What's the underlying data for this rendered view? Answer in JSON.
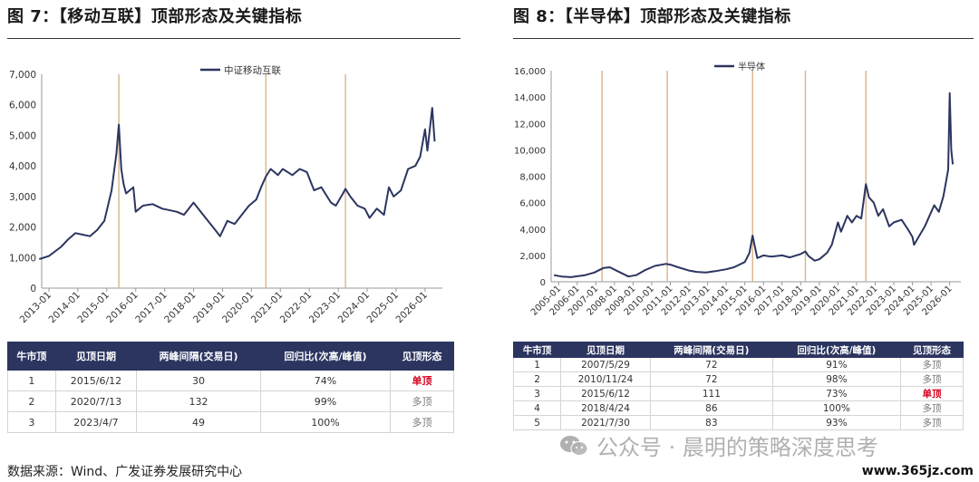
{
  "figures": [
    {
      "title": "图 7：【移动互联】顶部形态及关键指标",
      "chart_data": {
        "type": "line",
        "series": [
          {
            "name": "中证移动互联",
            "color": "#2c3560"
          }
        ],
        "x": [
          "2012-09",
          "2013-01",
          "2013-06",
          "2013-09",
          "2013-12",
          "2014-03",
          "2014-06",
          "2014-09",
          "2014-12",
          "2015-03",
          "2015-05",
          "2015-06",
          "2015-07",
          "2015-08",
          "2015-09",
          "2015-12",
          "2016-01",
          "2016-04",
          "2016-08",
          "2016-12",
          "2017-06",
          "2017-09",
          "2018-01",
          "2018-06",
          "2018-10",
          "2018-12",
          "2019-03",
          "2019-06",
          "2019-09",
          "2019-12",
          "2020-03",
          "2020-05",
          "2020-07",
          "2020-09",
          "2020-12",
          "2021-02",
          "2021-06",
          "2021-09",
          "2021-12",
          "2022-03",
          "2022-06",
          "2022-10",
          "2022-12",
          "2023-03",
          "2023-04",
          "2023-06",
          "2023-09",
          "2023-12",
          "2024-02",
          "2024-05",
          "2024-08",
          "2024-10",
          "2024-12",
          "2025-03",
          "2025-06",
          "2025-09",
          "2025-11",
          "2026-01",
          "2026-02",
          "2026-04",
          "2026-05"
        ],
        "values": [
          950,
          1050,
          1350,
          1600,
          1800,
          1750,
          1700,
          1900,
          2200,
          3200,
          4400,
          5350,
          3900,
          3400,
          3100,
          3300,
          2500,
          2700,
          2750,
          2600,
          2500,
          2400,
          2800,
          2300,
          1900,
          1700,
          2200,
          2100,
          2400,
          2700,
          2900,
          3300,
          3650,
          3900,
          3700,
          3900,
          3700,
          3900,
          3800,
          3200,
          3300,
          2800,
          2700,
          3100,
          3250,
          3000,
          2700,
          2600,
          2300,
          2600,
          2400,
          3300,
          3000,
          3200,
          3900,
          4000,
          4300,
          5200,
          4500,
          5900,
          4800
        ],
        "ylim": [
          0,
          7000
        ],
        "yticks": [
          "0",
          "1,000",
          "2,000",
          "3,000",
          "4,000",
          "5,000",
          "6,000",
          "7,000"
        ],
        "xticks": [
          "2013-01",
          "2014-01",
          "2015-01",
          "2016-01",
          "2017-01",
          "2018-01",
          "2019-01",
          "2020-01",
          "2021-01",
          "2022-01",
          "2023-01",
          "2024-01",
          "2025-01",
          "2026-01"
        ],
        "peak_markers": [
          "2015-06",
          "2020-07",
          "2023-04"
        ],
        "marker_color": "#d9b48a",
        "legend": "top-center",
        "grid": false
      },
      "table": {
        "headers": [
          "牛市顶",
          "见顶日期",
          "两峰间隔(交易日)",
          "回归比(次高/峰值)",
          "见顶形态"
        ],
        "rows": [
          [
            "1",
            "2015/6/12",
            "30",
            "74%",
            "单顶"
          ],
          [
            "2",
            "2020/7/13",
            "132",
            "99%",
            "多顶"
          ],
          [
            "3",
            "2023/4/7",
            "49",
            "100%",
            "多顶"
          ]
        ]
      }
    },
    {
      "title": "图 8：【半导体】顶部形态及关键指标",
      "chart_data": {
        "type": "line",
        "series": [
          {
            "name": "半导体",
            "color": "#2c3560"
          }
        ],
        "x": [
          "2004-10",
          "2005-03",
          "2005-09",
          "2006-06",
          "2006-12",
          "2007-06",
          "2007-10",
          "2008-03",
          "2008-10",
          "2009-03",
          "2009-09",
          "2010-03",
          "2010-10",
          "2011-01",
          "2011-06",
          "2012-01",
          "2012-06",
          "2012-12",
          "2013-06",
          "2014-01",
          "2014-06",
          "2015-01",
          "2015-04",
          "2015-06",
          "2015-09",
          "2016-01",
          "2016-06",
          "2017-01",
          "2017-06",
          "2018-01",
          "2018-04",
          "2018-06",
          "2018-10",
          "2019-01",
          "2019-06",
          "2019-09",
          "2020-01",
          "2020-03",
          "2020-07",
          "2020-10",
          "2021-01",
          "2021-04",
          "2021-07",
          "2021-09",
          "2021-12",
          "2022-03",
          "2022-06",
          "2022-10",
          "2023-01",
          "2023-06",
          "2023-10",
          "2024-01",
          "2024-02",
          "2024-05",
          "2024-09",
          "2024-12",
          "2025-03",
          "2025-06",
          "2025-09",
          "2025-11",
          "2025-12",
          "2026-01",
          "2026-02",
          "2026-03"
        ],
        "values": [
          500,
          400,
          350,
          500,
          700,
          1050,
          1100,
          800,
          400,
          500,
          900,
          1200,
          1350,
          1300,
          1100,
          850,
          750,
          700,
          800,
          950,
          1100,
          1500,
          2200,
          3500,
          1800,
          2000,
          1900,
          2000,
          1850,
          2100,
          2300,
          1950,
          1600,
          1700,
          2200,
          2800,
          4500,
          3800,
          5000,
          4500,
          5000,
          4800,
          7400,
          6400,
          6000,
          5000,
          5500,
          4200,
          4500,
          4700,
          4000,
          3400,
          2800,
          3400,
          4200,
          5000,
          5800,
          5300,
          6500,
          7800,
          8500,
          14300,
          10000,
          8900
        ],
        "ylim": [
          0,
          16000
        ],
        "yticks": [
          "0",
          "2,000",
          "4,000",
          "6,000",
          "8,000",
          "10,000",
          "12,000",
          "14,000",
          "16,000"
        ],
        "xticks": [
          "2005-01",
          "2006-01",
          "2007-01",
          "2008-01",
          "2009-01",
          "2010-01",
          "2011-01",
          "2012-01",
          "2013-01",
          "2014-01",
          "2015-01",
          "2016-01",
          "2017-01",
          "2018-01",
          "2019-01",
          "2020-01",
          "2021-01",
          "2022-01",
          "2023-01",
          "2024-01",
          "2025-01",
          "2026-01"
        ],
        "peak_markers": [
          "2007-05",
          "2010-11",
          "2015-06",
          "2018-04",
          "2021-07"
        ],
        "marker_color": "#d9b48a",
        "legend": "top-center",
        "grid": false
      },
      "table": {
        "headers": [
          "牛市顶",
          "见顶日期",
          "两峰间隔(交易日)",
          "回归比(次高/峰值)",
          "见顶形态"
        ],
        "rows": [
          [
            "1",
            "2007/5/29",
            "72",
            "91%",
            "多顶"
          ],
          [
            "2",
            "2010/11/24",
            "72",
            "98%",
            "多顶"
          ],
          [
            "3",
            "2015/6/12",
            "111",
            "73%",
            "单顶"
          ],
          [
            "4",
            "2018/4/24",
            "86",
            "100%",
            "多顶"
          ],
          [
            "5",
            "2021/7/30",
            "83",
            "93%",
            "多顶"
          ]
        ]
      }
    }
  ],
  "source": "数据来源：Wind、广发证券发展研究中心",
  "watermark": "公众号 · 晨明的策略深度思考",
  "site": "www.365jz.com",
  "colors": {
    "header_bg": "#2c3560",
    "single_top": "#d6001c",
    "multi_top": "#777777"
  }
}
